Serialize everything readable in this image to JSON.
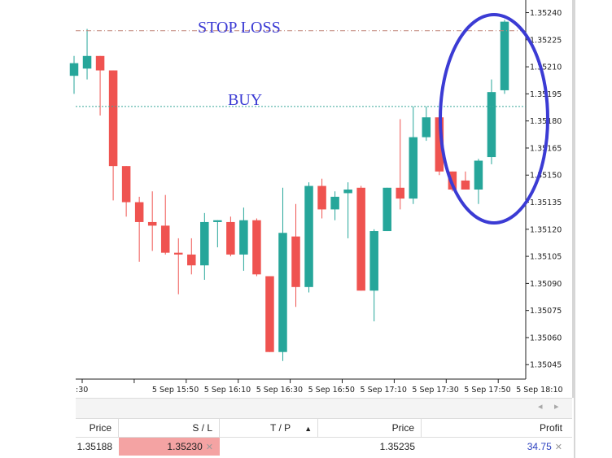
{
  "colors": {
    "bull": "#26a69a",
    "bear": "#ef5350",
    "stop_line": "#c2857a",
    "buy_line": "#3aa89b",
    "annotation": "#3b3bd4",
    "sl_highlight": "#f4a3a3"
  },
  "chart_data": {
    "type": "candlestick",
    "price_axis_ticks": [
      "1.35240",
      "1.35225",
      "1.35210",
      "1.35195",
      "1.35180",
      "1.35165",
      "1.35150",
      "1.35135",
      "1.35120",
      "1.35105",
      "1.35090",
      "1.35075",
      "1.35060",
      "1.35045"
    ],
    "time_axis_ticks": [
      ":30",
      "5 Sep 15:50",
      "5 Sep 16:10",
      "5 Sep 16:30",
      "5 Sep 16:50",
      "5 Sep 17:10",
      "5 Sep 17:30",
      "5 Sep 17:50",
      "5 Sep 18:10"
    ],
    "ylim": [
      1.35037,
      1.35247
    ],
    "stop_loss_level": 1.3523,
    "buy_level": 1.35188,
    "candles": [
      {
        "o": 1.35205,
        "h": 1.35216,
        "l": 1.35195,
        "c": 1.35212
      },
      {
        "o": 1.35209,
        "h": 1.35231,
        "l": 1.35203,
        "c": 1.35216
      },
      {
        "o": 1.35216,
        "h": 1.35216,
        "l": 1.35183,
        "c": 1.35208
      },
      {
        "o": 1.35208,
        "h": 1.35208,
        "l": 1.35136,
        "c": 1.35155
      },
      {
        "o": 1.35155,
        "h": 1.35155,
        "l": 1.35127,
        "c": 1.35135
      },
      {
        "o": 1.35135,
        "h": 1.35138,
        "l": 1.35102,
        "c": 1.35124
      },
      {
        "o": 1.35124,
        "h": 1.35141,
        "l": 1.35108,
        "c": 1.35122
      },
      {
        "o": 1.35122,
        "h": 1.35139,
        "l": 1.35106,
        "c": 1.35107
      },
      {
        "o": 1.35107,
        "h": 1.35115,
        "l": 1.35084,
        "c": 1.35106
      },
      {
        "o": 1.35106,
        "h": 1.35115,
        "l": 1.35095,
        "c": 1.351
      },
      {
        "o": 1.351,
        "h": 1.35129,
        "l": 1.35092,
        "c": 1.35124
      },
      {
        "o": 1.35124,
        "h": 1.35125,
        "l": 1.3511,
        "c": 1.35125
      },
      {
        "o": 1.35124,
        "h": 1.35127,
        "l": 1.35105,
        "c": 1.35106
      },
      {
        "o": 1.35106,
        "h": 1.35132,
        "l": 1.35097,
        "c": 1.35125
      },
      {
        "o": 1.35125,
        "h": 1.35126,
        "l": 1.35094,
        "c": 1.35095
      },
      {
        "o": 1.35094,
        "h": 1.35094,
        "l": 1.35052,
        "c": 1.35052
      },
      {
        "o": 1.35052,
        "h": 1.35143,
        "l": 1.35047,
        "c": 1.35118
      },
      {
        "o": 1.35116,
        "h": 1.35134,
        "l": 1.35077,
        "c": 1.35088
      },
      {
        "o": 1.35088,
        "h": 1.35146,
        "l": 1.35085,
        "c": 1.35144
      },
      {
        "o": 1.35144,
        "h": 1.35148,
        "l": 1.35126,
        "c": 1.35131
      },
      {
        "o": 1.35131,
        "h": 1.35141,
        "l": 1.35125,
        "c": 1.35138
      },
      {
        "o": 1.3514,
        "h": 1.35146,
        "l": 1.35115,
        "c": 1.35142
      },
      {
        "o": 1.35143,
        "h": 1.35144,
        "l": 1.35086,
        "c": 1.35086
      },
      {
        "o": 1.35086,
        "h": 1.3512,
        "l": 1.35069,
        "c": 1.35119
      },
      {
        "o": 1.35119,
        "h": 1.35143,
        "l": 1.35119,
        "c": 1.35143
      },
      {
        "o": 1.35143,
        "h": 1.35181,
        "l": 1.35131,
        "c": 1.35137
      },
      {
        "o": 1.35137,
        "h": 1.35188,
        "l": 1.35134,
        "c": 1.35171
      },
      {
        "o": 1.35171,
        "h": 1.35188,
        "l": 1.35169,
        "c": 1.35182
      },
      {
        "o": 1.35182,
        "h": 1.35186,
        "l": 1.3515,
        "c": 1.35152
      },
      {
        "o": 1.35152,
        "h": 1.35152,
        "l": 1.35141,
        "c": 1.35142
      },
      {
        "o": 1.35147,
        "h": 1.35152,
        "l": 1.35142,
        "c": 1.35142
      },
      {
        "o": 1.35142,
        "h": 1.35159,
        "l": 1.35134,
        "c": 1.35158
      },
      {
        "o": 1.3516,
        "h": 1.35203,
        "l": 1.35156,
        "c": 1.35196
      },
      {
        "o": 1.35197,
        "h": 1.35236,
        "l": 1.35195,
        "c": 1.35235
      }
    ]
  },
  "annotations": {
    "stop_loss": "STOP LOSS",
    "buy": "BUY"
  },
  "terminal": {
    "headers": {
      "price": "Price",
      "sl": "S / L",
      "tp": "T / P",
      "sort_icon": "▲",
      "price2": "Price",
      "profit": "Profit"
    },
    "row": {
      "open_price": "1.35188",
      "sl": "1.35230",
      "tp": "",
      "current_price": "1.35235",
      "profit": "34.75"
    },
    "remove_icon": "✕",
    "scroll_left": "◂",
    "scroll_right": "▸"
  }
}
